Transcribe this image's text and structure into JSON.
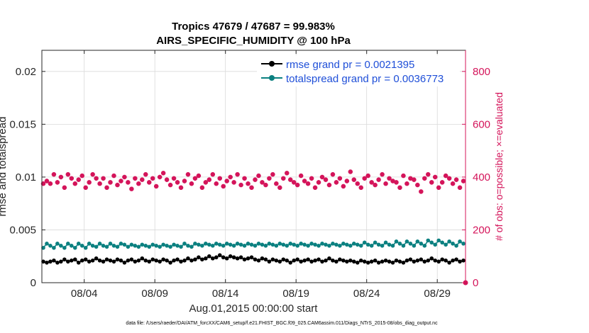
{
  "chart_data": {
    "type": "scatter",
    "title_line1": "Tropics 47679 / 47687 = 99.983%",
    "title_line2": "AIRS_SPECIFIC_HUMIDITY @ 100 hPa",
    "xlabel": "Aug.01,2015 00:00:00 start",
    "ylabel_left": "rmse and totalspread",
    "ylabel_right": "# of obs: o=possible; ×=evaluated",
    "xlim": [
      1.0,
      31.0
    ],
    "ylim_left": [
      0,
      0.022
    ],
    "ylim_right": [
      0,
      880
    ],
    "x_ticks": [
      {
        "value": 4,
        "label": "08/04"
      },
      {
        "value": 9,
        "label": "08/09"
      },
      {
        "value": 14,
        "label": "08/14"
      },
      {
        "value": 19,
        "label": "08/19"
      },
      {
        "value": 24,
        "label": "08/24"
      },
      {
        "value": 29,
        "label": "08/29"
      }
    ],
    "y_left_ticks": [
      {
        "value": 0,
        "label": "0"
      },
      {
        "value": 0.005,
        "label": "0.005"
      },
      {
        "value": 0.01,
        "label": "0.01"
      },
      {
        "value": 0.015,
        "label": "0.015"
      },
      {
        "value": 0.02,
        "label": "0.02"
      }
    ],
    "y_right_ticks": [
      {
        "value": 0,
        "label": "0"
      },
      {
        "value": 200,
        "label": "200"
      },
      {
        "value": 400,
        "label": "400"
      },
      {
        "value": 600,
        "label": "600"
      },
      {
        "value": 800,
        "label": "800"
      }
    ],
    "grid": true,
    "legend_position": "top-right",
    "time_step_days": 0.25,
    "series": [
      {
        "name": "rmse grand pr = 0.0021395",
        "axis": "left",
        "color": "#000000",
        "marker": "circle",
        "values": [
          0.002,
          0.0019,
          0.002,
          0.0021,
          0.0019,
          0.002,
          0.0022,
          0.002,
          0.0021,
          0.0022,
          0.0019,
          0.0021,
          0.0022,
          0.002,
          0.0021,
          0.0023,
          0.0021,
          0.002,
          0.0022,
          0.0021,
          0.002,
          0.0022,
          0.0021,
          0.0019,
          0.0021,
          0.0022,
          0.002,
          0.0021,
          0.0023,
          0.0021,
          0.002,
          0.0022,
          0.0021,
          0.002,
          0.0022,
          0.0021,
          0.0019,
          0.0021,
          0.0022,
          0.002,
          0.0021,
          0.0023,
          0.0021,
          0.0022,
          0.0024,
          0.0022,
          0.0023,
          0.0025,
          0.0023,
          0.0024,
          0.0026,
          0.0024,
          0.0023,
          0.0025,
          0.0024,
          0.0023,
          0.0024,
          0.0022,
          0.0023,
          0.0024,
          0.0022,
          0.0021,
          0.0023,
          0.0022,
          0.002,
          0.0022,
          0.0021,
          0.002,
          0.0022,
          0.0021,
          0.0019,
          0.0021,
          0.0022,
          0.002,
          0.0021,
          0.0022,
          0.002,
          0.0021,
          0.0022,
          0.002,
          0.0021,
          0.0023,
          0.0021,
          0.002,
          0.0022,
          0.0021,
          0.002,
          0.0021,
          0.002,
          0.0019,
          0.0021,
          0.002,
          0.0019,
          0.002,
          0.0021,
          0.0019,
          0.002,
          0.0021,
          0.002,
          0.0019,
          0.0021,
          0.002,
          0.0019,
          0.0021,
          0.0022,
          0.002,
          0.0021,
          0.0022,
          0.002,
          0.0021,
          0.0023,
          0.0021,
          0.002,
          0.0022,
          0.0021,
          0.0019,
          0.0021,
          0.0022,
          0.002,
          0.0021,
          0.0023,
          0.0021
        ]
      },
      {
        "name": "totalspread grand pr = 0.0036773",
        "axis": "left",
        "color": "#0b8080",
        "marker": "circle",
        "values": [
          0.0033,
          0.0037,
          0.0035,
          0.0033,
          0.0037,
          0.0035,
          0.0033,
          0.0037,
          0.0035,
          0.0033,
          0.0037,
          0.0035,
          0.0033,
          0.0037,
          0.0035,
          0.0034,
          0.0037,
          0.0035,
          0.0034,
          0.0037,
          0.0035,
          0.0034,
          0.0037,
          0.0036,
          0.0034,
          0.0036,
          0.0035,
          0.0034,
          0.0036,
          0.0035,
          0.0034,
          0.0036,
          0.0035,
          0.0034,
          0.0036,
          0.0035,
          0.0034,
          0.0036,
          0.0035,
          0.0034,
          0.0037,
          0.0035,
          0.0034,
          0.0037,
          0.0036,
          0.0035,
          0.0037,
          0.0036,
          0.0035,
          0.0037,
          0.0036,
          0.0035,
          0.0037,
          0.0036,
          0.0035,
          0.0037,
          0.0036,
          0.0035,
          0.0037,
          0.0036,
          0.0035,
          0.0037,
          0.0036,
          0.0035,
          0.0037,
          0.0036,
          0.0035,
          0.0037,
          0.0036,
          0.0035,
          0.0037,
          0.0036,
          0.0035,
          0.0037,
          0.0036,
          0.0035,
          0.0037,
          0.0036,
          0.0035,
          0.0037,
          0.0036,
          0.0035,
          0.0037,
          0.0036,
          0.0035,
          0.0037,
          0.0036,
          0.0035,
          0.0037,
          0.0036,
          0.0035,
          0.0038,
          0.0036,
          0.0035,
          0.0038,
          0.0036,
          0.0035,
          0.0038,
          0.0036,
          0.0035,
          0.0039,
          0.0037,
          0.0035,
          0.0039,
          0.0037,
          0.0035,
          0.0039,
          0.0037,
          0.0035,
          0.004,
          0.0038,
          0.0036,
          0.004,
          0.0038,
          0.0036,
          0.0039,
          0.0037,
          0.0035,
          0.0039,
          0.0037
        ]
      },
      {
        "name": "obs evaluated",
        "axis": "right",
        "color": "#d4145a",
        "marker": "x",
        "values": [
          375,
          385,
          375,
          410,
          380,
          400,
          360,
          410,
          395,
          375,
          390,
          405,
          360,
          380,
          410,
          395,
          375,
          395,
          360,
          380,
          405,
          370,
          385,
          400,
          380,
          355,
          395,
          375,
          390,
          410,
          380,
          395,
          365,
          400,
          415,
          390,
          370,
          395,
          380,
          360,
          385,
          410,
          375,
          395,
          405,
          360,
          380,
          390,
          410,
          375,
          395,
          365,
          385,
          400,
          380,
          410,
          370,
          395,
          375,
          360,
          390,
          405,
          380,
          370,
          395,
          410,
          375,
          360,
          395,
          415,
          390,
          380,
          370,
          405,
          385,
          375,
          395,
          360,
          380,
          400,
          390,
          370,
          410,
          380,
          395,
          365,
          385,
          420,
          390,
          375,
          360,
          395,
          405,
          380,
          370,
          390,
          410,
          375,
          395,
          385,
          380,
          360,
          405,
          375,
          395,
          390,
          370,
          345,
          395,
          410,
          380,
          400,
          360,
          380,
          405,
          395,
          375,
          390,
          360,
          385,
          410
        ]
      },
      {
        "name": "obs possible",
        "axis": "right",
        "color": "#d4145a",
        "marker": "circle",
        "values": [
          0
        ]
      }
    ]
  },
  "footnote": "data file: /Users/raeder/DAI/ATM_forcXX/CAM6_setup/f.e21.FHIST_BGC.f09_025.CAM6assim.011/Diags_NTrS_2015-08/obs_diag_output.nc"
}
